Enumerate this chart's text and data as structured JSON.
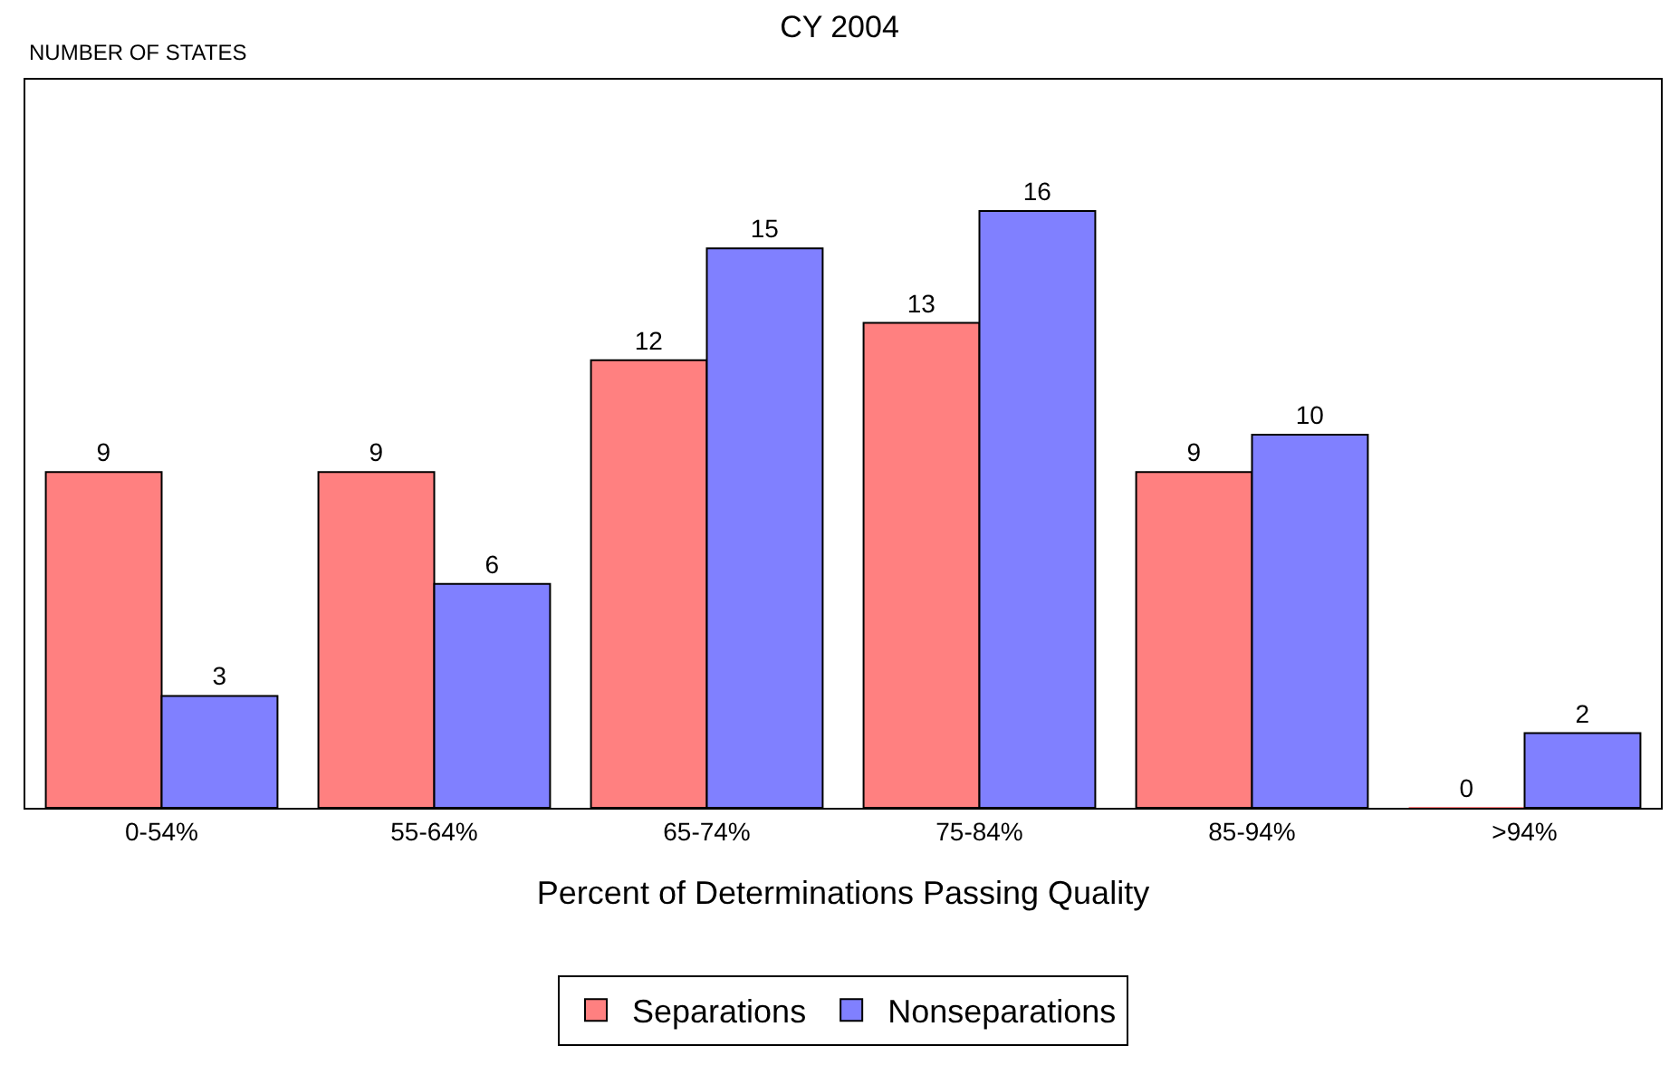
{
  "chart_data": {
    "type": "bar",
    "title": "CY 2004",
    "annotations": [
      "NUMBER OF STATES"
    ],
    "xlabel": "Percent of Determinations Passing Quality",
    "categories": [
      "0-54%",
      "55-64%",
      "65-74%",
      "75-84%",
      "85-94%",
      ">94%"
    ],
    "series": [
      {
        "name": "Separations",
        "color": "#ff8080",
        "values": [
          9,
          9,
          12,
          13,
          9,
          0
        ]
      },
      {
        "name": "Nonseparations",
        "color": "#8080ff",
        "values": [
          3,
          6,
          15,
          16,
          10,
          2
        ]
      }
    ],
    "data_labels": true,
    "legend": "bottom"
  }
}
